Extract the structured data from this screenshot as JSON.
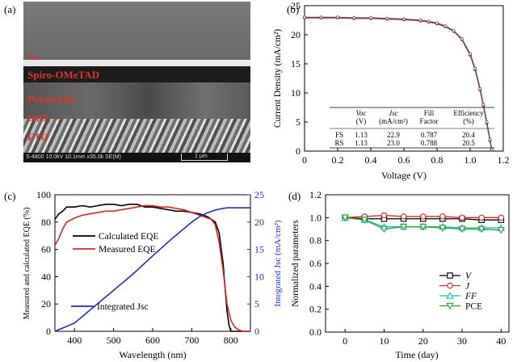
{
  "panels": {
    "a": "(a)",
    "b": "(b)",
    "c": "(c)",
    "d": "(d)"
  },
  "sem": {
    "layers": [
      "Au",
      "Spiro-OMeTAD",
      "Perovskite",
      "SnO₂",
      "FTO"
    ],
    "info": "S-4800 10.0kV 10.1mm x35.0k SE(M)",
    "scale": "1 μm"
  },
  "chart_data": [
    {
      "type": "line",
      "panel": "b",
      "xlabel": "Voltage (V)",
      "ylabel": "Current Density (mA/cm²)",
      "xlim": [
        0,
        1.2
      ],
      "ylim": [
        0,
        25
      ],
      "xticks": [
        "0",
        "0.2",
        "0.4",
        "0.6",
        "0.8",
        "1.0",
        "1.2"
      ],
      "yticks": [
        "0",
        "5",
        "10",
        "15",
        "20",
        "25"
      ],
      "series": [
        {
          "name": "FS",
          "x": [
            0,
            0.1,
            0.2,
            0.3,
            0.4,
            0.5,
            0.6,
            0.7,
            0.75,
            0.8,
            0.85,
            0.9,
            0.95,
            1.0,
            1.03,
            1.06,
            1.08,
            1.1,
            1.12,
            1.13
          ],
          "y": [
            22.9,
            22.9,
            22.9,
            22.8,
            22.8,
            22.7,
            22.6,
            22.4,
            22.2,
            21.9,
            21.4,
            20.6,
            19.2,
            16.5,
            14.0,
            10.5,
            7.8,
            4.8,
            1.8,
            0.2
          ]
        },
        {
          "name": "RS",
          "x": [
            0,
            0.1,
            0.2,
            0.3,
            0.4,
            0.5,
            0.6,
            0.7,
            0.75,
            0.8,
            0.85,
            0.9,
            0.95,
            1.0,
            1.03,
            1.06,
            1.08,
            1.1,
            1.12,
            1.13
          ],
          "y": [
            23.0,
            23.0,
            23.0,
            22.9,
            22.9,
            22.8,
            22.7,
            22.5,
            22.3,
            22.0,
            21.5,
            20.7,
            19.3,
            16.7,
            14.2,
            10.7,
            8.0,
            5.0,
            2.0,
            0.3
          ]
        }
      ],
      "table": {
        "header": [
          "",
          "Voc\n(V)",
          "Jsc\n(mA/cm²)",
          "Fill\nFactor",
          "Efficiency\n(%)"
        ],
        "rows": [
          [
            "FS",
            "1.13",
            "22.9",
            "0.787",
            "20.4"
          ],
          [
            "RS",
            "1.13",
            "23.0",
            "0.788",
            "20.5"
          ]
        ]
      }
    },
    {
      "type": "line",
      "panel": "c",
      "xlabel": "Wavelength (nm)",
      "ylabel": "Measured and calculated EQE (%)",
      "y2label": "Integrated Jsc (mA/cm²)",
      "xlim": [
        350,
        850
      ],
      "ylim": [
        0,
        100
      ],
      "y2lim": [
        0,
        25
      ],
      "xticks": [
        "400",
        "500",
        "600",
        "700",
        "800"
      ],
      "yticks": [
        "0",
        "20",
        "40",
        "60",
        "80",
        "100"
      ],
      "y2ticks": [
        "0",
        "5",
        "10",
        "15",
        "20",
        "25"
      ],
      "legend": [
        "Calculated EQE",
        "Measured EQE",
        "Integrated Jsc"
      ],
      "series": [
        {
          "name": "Calculated EQE",
          "color": "#000000",
          "axis": "left",
          "x": [
            350,
            360,
            370,
            380,
            400,
            420,
            440,
            460,
            480,
            500,
            520,
            540,
            560,
            580,
            600,
            620,
            640,
            660,
            680,
            700,
            720,
            740,
            760,
            770,
            780,
            790,
            795,
            800,
            810,
            850
          ],
          "y": [
            82,
            86,
            88,
            91,
            91,
            92,
            91,
            92,
            93,
            93,
            92,
            93,
            93,
            91,
            91,
            90,
            89,
            88,
            88,
            87,
            86,
            84,
            80,
            72,
            50,
            15,
            5,
            0,
            0,
            0
          ]
        },
        {
          "name": "Measured EQE",
          "color": "#d62728",
          "axis": "left",
          "x": [
            350,
            360,
            370,
            380,
            400,
            420,
            440,
            460,
            480,
            500,
            520,
            540,
            560,
            580,
            600,
            620,
            640,
            660,
            680,
            700,
            720,
            740,
            750,
            760,
            770,
            780,
            790,
            800,
            810,
            820,
            830,
            850
          ],
          "y": [
            63,
            68,
            75,
            80,
            83,
            85,
            86,
            87,
            88,
            88,
            89,
            90,
            91,
            92,
            92,
            91,
            91,
            90,
            89,
            87,
            85,
            83,
            82,
            78,
            65,
            45,
            20,
            8,
            3,
            1,
            0,
            0
          ]
        },
        {
          "name": "Integrated Jsc",
          "color": "#1f2fbf",
          "axis": "right",
          "x": [
            350,
            400,
            450,
            500,
            550,
            600,
            650,
            700,
            720,
            740,
            760,
            780,
            790,
            800,
            850
          ],
          "y": [
            0,
            1.5,
            4.5,
            7.5,
            10.5,
            13.8,
            17.0,
            20.0,
            21.0,
            21.7,
            22.2,
            22.5,
            22.6,
            22.6,
            22.6
          ]
        }
      ]
    },
    {
      "type": "line",
      "panel": "d",
      "xlabel": "Time (day)",
      "ylabel": "Normalized parameters",
      "xlim": [
        -5,
        42
      ],
      "ylim": [
        0,
        1.2
      ],
      "xticks": [
        "0",
        "10",
        "20",
        "30",
        "40"
      ],
      "yticks": [
        "0.0",
        "0.2",
        "0.4",
        "0.6",
        "0.8",
        "1.0",
        "1.2"
      ],
      "legend": [
        "V",
        "J",
        "FF",
        "PCE"
      ],
      "series": [
        {
          "name": "V",
          "color": "#000000",
          "marker": "square",
          "x": [
            0,
            5,
            10,
            15,
            20,
            25,
            30,
            35,
            40
          ],
          "y": [
            1.0,
            0.99,
            0.99,
            0.99,
            0.99,
            0.99,
            0.99,
            0.98,
            0.98
          ]
        },
        {
          "name": "J",
          "color": "#d62728",
          "marker": "circle",
          "x": [
            0,
            5,
            10,
            15,
            20,
            25,
            30,
            35,
            40
          ],
          "y": [
            1.0,
            1.01,
            1.02,
            1.01,
            1.01,
            1.01,
            1.0,
            1.0,
            1.0
          ]
        },
        {
          "name": "FF",
          "color": "#17becf",
          "marker": "triangle-up",
          "x": [
            0,
            5,
            10,
            15,
            20,
            25,
            30,
            35,
            40
          ],
          "y": [
            1.0,
            0.98,
            0.92,
            0.92,
            0.92,
            0.92,
            0.91,
            0.91,
            0.91
          ]
        },
        {
          "name": "PCE",
          "color": "#2ca02c",
          "marker": "triangle-down",
          "x": [
            0,
            5,
            10,
            15,
            20,
            25,
            30,
            35,
            40
          ],
          "y": [
            1.0,
            0.98,
            0.9,
            0.92,
            0.92,
            0.91,
            0.9,
            0.9,
            0.89
          ]
        }
      ]
    }
  ]
}
